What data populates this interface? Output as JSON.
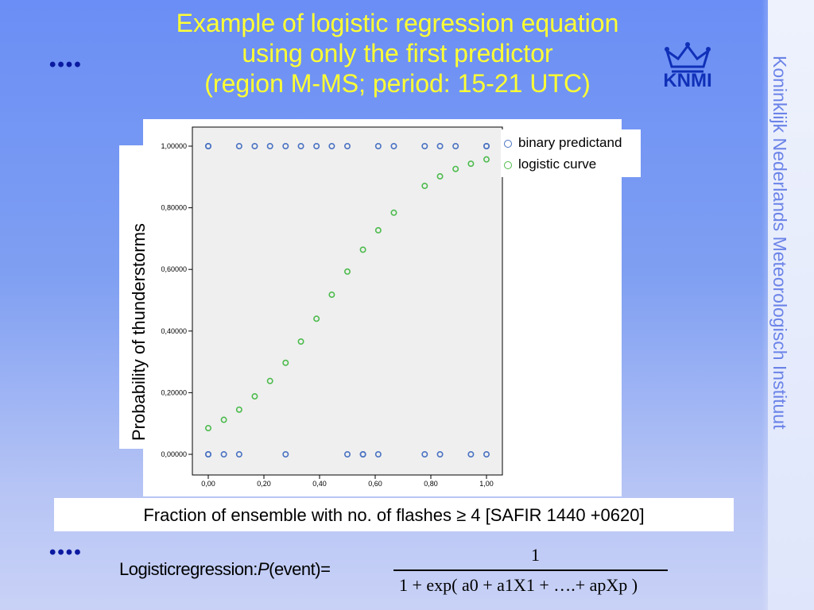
{
  "title_lines": [
    "Example of logistic regression equation",
    "using only the first predictor",
    "(region M-MS; period: 15-21 UTC)"
  ],
  "bullets": "••••",
  "logo_text": "KNMI",
  "vertical_org": "Koninklijk Nederlands Meteorologisch Instituut",
  "legend": [
    "binary predictand",
    "logistic curve"
  ],
  "xlabel": "Fraction of ensemble with no. of flashes ≥ 4 [SAFIR 1440 +0620]",
  "ylabel": "Probability of thunderstorms",
  "formula": {
    "left": "Logisticregression:",
    "p": "P",
    "event": "(event)",
    "eq": "=",
    "numerator": "1",
    "denominator": "1 + exp( a0 + a1X1 + ….+ apXp )"
  },
  "colors": {
    "binary": "#4a72c2",
    "logistic": "#4dbb4d",
    "title": "#ffff33",
    "bullets": "#0b1aa0"
  },
  "chart_data": {
    "type": "scatter",
    "xlim": [
      0,
      1
    ],
    "ylim": [
      0,
      1
    ],
    "x_ticks": [
      "0,00",
      "0,20",
      "0,40",
      "0,60",
      "0,80",
      "1,00"
    ],
    "y_ticks": [
      "0,00000",
      "0,20000",
      "0,40000",
      "0,60000",
      "0,80000",
      "1,00000"
    ],
    "grid": false,
    "legend_position": "top-right",
    "series": [
      {
        "name": "binary predictand",
        "points": [
          [
            0.0,
            1
          ],
          [
            0.0,
            1
          ],
          [
            0.111,
            1
          ],
          [
            0.167,
            1
          ],
          [
            0.222,
            1
          ],
          [
            0.278,
            1
          ],
          [
            0.333,
            1
          ],
          [
            0.389,
            1
          ],
          [
            0.444,
            1
          ],
          [
            0.5,
            1
          ],
          [
            0.611,
            1
          ],
          [
            0.667,
            1
          ],
          [
            0.778,
            1
          ],
          [
            0.833,
            1
          ],
          [
            0.889,
            1
          ],
          [
            1.0,
            1
          ],
          [
            1.0,
            1
          ],
          [
            0.0,
            0
          ],
          [
            0.0,
            0
          ],
          [
            0.056,
            0
          ],
          [
            0.111,
            0
          ],
          [
            0.278,
            0
          ],
          [
            0.5,
            0
          ],
          [
            0.556,
            0
          ],
          [
            0.556,
            0
          ],
          [
            0.611,
            0
          ],
          [
            0.778,
            0
          ],
          [
            0.833,
            0
          ],
          [
            0.944,
            0
          ],
          [
            1.0,
            0
          ]
        ]
      },
      {
        "name": "logistic curve",
        "points": [
          [
            0.0,
            0.085
          ],
          [
            0.056,
            0.112
          ],
          [
            0.111,
            0.145
          ],
          [
            0.167,
            0.188
          ],
          [
            0.222,
            0.238
          ],
          [
            0.278,
            0.297
          ],
          [
            0.333,
            0.366
          ],
          [
            0.389,
            0.44
          ],
          [
            0.444,
            0.518
          ],
          [
            0.5,
            0.593
          ],
          [
            0.556,
            0.664
          ],
          [
            0.611,
            0.727
          ],
          [
            0.667,
            0.784
          ],
          [
            0.778,
            0.871
          ],
          [
            0.833,
            0.902
          ],
          [
            0.889,
            0.926
          ],
          [
            0.944,
            0.943
          ],
          [
            1.0,
            0.957
          ]
        ]
      }
    ]
  }
}
